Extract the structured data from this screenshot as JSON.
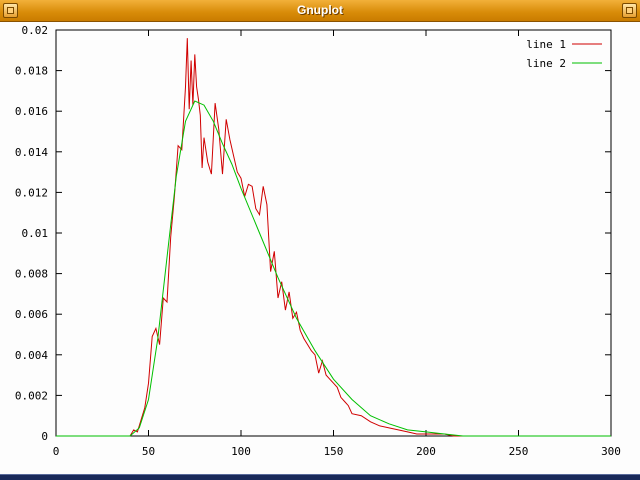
{
  "window": {
    "title": "Gnuplot"
  },
  "chart_data": {
    "type": "line",
    "title": "",
    "xlabel": "",
    "ylabel": "",
    "xlim": [
      0,
      300
    ],
    "ylim": [
      0,
      0.02
    ],
    "x_ticks": [
      0,
      50,
      100,
      150,
      200,
      250,
      300
    ],
    "x_tick_labels": [
      "0",
      "50",
      "100",
      "150",
      "200",
      "250",
      "300"
    ],
    "y_ticks": [
      0,
      0.002,
      0.004,
      0.006,
      0.008,
      0.01,
      0.012,
      0.014,
      0.016,
      0.018,
      0.02
    ],
    "y_tick_labels": [
      "0",
      "0.002",
      "0.004",
      "0.006",
      "0.008",
      "0.01",
      "0.012",
      "0.014",
      "0.016",
      "0.018",
      "0.02"
    ],
    "grid": false,
    "legend_position": "top-right",
    "series": [
      {
        "name": "line 1",
        "color": "#d00000",
        "x": [
          0,
          40,
          42,
          44,
          46,
          48,
          50,
          52,
          54,
          56,
          58,
          60,
          62,
          64,
          66,
          68,
          70,
          71,
          72,
          73,
          74,
          75,
          76,
          77,
          78,
          79,
          80,
          82,
          84,
          86,
          88,
          90,
          92,
          94,
          96,
          98,
          100,
          102,
          104,
          106,
          108,
          110,
          112,
          114,
          116,
          118,
          120,
          122,
          124,
          126,
          128,
          130,
          132,
          134,
          136,
          138,
          140,
          142,
          144,
          146,
          148,
          150,
          152,
          154,
          156,
          158,
          160,
          165,
          170,
          175,
          180,
          185,
          190,
          195,
          200,
          205,
          210,
          215,
          220,
          300
        ],
        "y": [
          0,
          0,
          0.0003,
          0.0002,
          0.0008,
          0.0014,
          0.0026,
          0.0049,
          0.0053,
          0.0045,
          0.0068,
          0.0066,
          0.0098,
          0.0118,
          0.0143,
          0.0141,
          0.0172,
          0.0196,
          0.0161,
          0.0185,
          0.0163,
          0.0188,
          0.0172,
          0.0166,
          0.0158,
          0.0132,
          0.0147,
          0.0135,
          0.0129,
          0.0164,
          0.0151,
          0.0129,
          0.0156,
          0.0146,
          0.0138,
          0.013,
          0.0127,
          0.0118,
          0.0124,
          0.0123,
          0.0112,
          0.0109,
          0.0123,
          0.0114,
          0.0081,
          0.0091,
          0.0068,
          0.0076,
          0.0062,
          0.0071,
          0.0058,
          0.0061,
          0.0052,
          0.0048,
          0.0045,
          0.0042,
          0.004,
          0.0031,
          0.0037,
          0.003,
          0.0028,
          0.0026,
          0.0024,
          0.0019,
          0.0017,
          0.0015,
          0.0011,
          0.001,
          0.0007,
          0.0005,
          0.0004,
          0.0003,
          0.0002,
          0.0001,
          0.0001,
          0.0001,
          0.0001,
          0,
          0,
          0
        ]
      },
      {
        "name": "line 2",
        "color": "#00c000",
        "x": [
          0,
          40,
          45,
          50,
          55,
          60,
          65,
          70,
          75,
          80,
          85,
          90,
          95,
          100,
          110,
          120,
          130,
          140,
          150,
          160,
          170,
          180,
          190,
          200,
          210,
          220,
          240,
          300
        ],
        "y": [
          0,
          0,
          0.0004,
          0.0018,
          0.0048,
          0.0088,
          0.0128,
          0.0155,
          0.0165,
          0.0163,
          0.0155,
          0.0144,
          0.0134,
          0.0122,
          0.01,
          0.0078,
          0.0058,
          0.0042,
          0.0028,
          0.0018,
          0.001,
          0.0006,
          0.0003,
          0.0002,
          0.0001,
          0,
          0,
          0
        ]
      }
    ]
  }
}
